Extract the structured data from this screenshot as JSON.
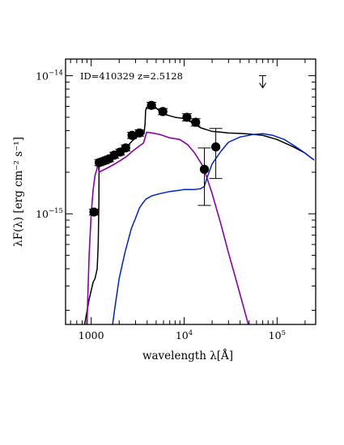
{
  "chart_data": {
    "type": "scatter",
    "annotation": "ID=410329  z=2.5128",
    "xlabel": "wavelength λ[Å]",
    "ylabel": "λF(λ) [erg cm⁻² s⁻¹]",
    "xscale": "log",
    "yscale": "log",
    "xlim": [
      530,
      260000
    ],
    "ylim": [
      1.58e-16,
      1.32e-14
    ],
    "xticks": [
      {
        "value": 1000,
        "label": "1000"
      },
      {
        "value": 10000,
        "label": "10",
        "exp": "4"
      },
      {
        "value": 100000,
        "label": "10",
        "exp": "5"
      }
    ],
    "yticks": [
      {
        "value": 1e-15,
        "label": "10",
        "exp": "−15"
      },
      {
        "value": 1e-14,
        "label": "10",
        "exp": "−14"
      }
    ],
    "colors": {
      "points": "#000000",
      "total_model": "#000000",
      "starburst_component": "#8800aa",
      "dust_component": "#0022cc"
    },
    "points": [
      {
        "x": 1070,
        "y": 1.03e-15,
        "yerr": 5e-17
      },
      {
        "x": 1220,
        "y": 2.35e-15,
        "yerr": 1.2e-16
      },
      {
        "x": 1380,
        "y": 2.42e-15,
        "yerr": 1.2e-16
      },
      {
        "x": 1560,
        "y": 2.5e-15,
        "yerr": 1.2e-16
      },
      {
        "x": 1770,
        "y": 2.66e-15,
        "yerr": 1.3e-16
      },
      {
        "x": 2050,
        "y": 2.8e-15,
        "yerr": 1.4e-16
      },
      {
        "x": 2350,
        "y": 3e-15,
        "yerr": 1.5e-16
      },
      {
        "x": 2750,
        "y": 3.7e-15,
        "yerr": 1.9e-16
      },
      {
        "x": 3300,
        "y": 3.85e-15,
        "yerr": 2e-16
      },
      {
        "x": 4450,
        "y": 6.1e-15,
        "yerr": 3.2e-16
      },
      {
        "x": 5900,
        "y": 5.5e-15,
        "yerr": 2.8e-16
      },
      {
        "x": 10700,
        "y": 5e-15,
        "yerr": 3e-16
      },
      {
        "x": 13300,
        "y": 4.6e-15,
        "yerr": 2.8e-16
      },
      {
        "x": 16500,
        "y": 2.1e-15,
        "yerr_low": 9.5e-16,
        "yerr_high": 9e-16
      },
      {
        "x": 21900,
        "y": 3.05e-15,
        "yerr_low": 1.25e-15,
        "yerr_high": 1.1e-15
      }
    ],
    "upper_limits": [
      {
        "x": 70000,
        "y": 1e-14
      }
    ],
    "series": [
      {
        "key": "total_model",
        "x": [
          850,
          950,
          1050,
          1100,
          1160,
          1190,
          1210,
          1215,
          1230,
          1300,
          1400,
          1600,
          1800,
          2000,
          2400,
          2800,
          3200,
          3500,
          3700,
          3800,
          3850,
          3950,
          4300,
          4800,
          5500,
          6500,
          8000,
          10000,
          12000,
          15000,
          20000,
          25000,
          30000,
          40000,
          50000,
          70000,
          100000,
          150000,
          200000,
          250000
        ],
        "y": [
          1.58e-16,
          2.4e-16,
          3.2e-16,
          3.4e-16,
          4e-16,
          6e-16,
          1.2e-15,
          2.1e-15,
          2.4e-15,
          2.45e-15,
          2.48e-15,
          2.58e-15,
          2.68e-15,
          2.8e-15,
          3.05e-15,
          3.4e-15,
          3.65e-15,
          3.75e-15,
          3.8e-15,
          4.5e-15,
          5.6e-15,
          5.9e-15,
          5.95e-15,
          6e-15,
          5.5e-15,
          5.2e-15,
          5e-15,
          4.9e-15,
          4.6e-15,
          4.2e-15,
          3.95e-15,
          3.9e-15,
          3.85e-15,
          3.82e-15,
          3.78e-15,
          3.7e-15,
          3.45e-15,
          3.05e-15,
          2.75e-15,
          2.45e-15
        ]
      },
      {
        "key": "starburst_component",
        "x": [
          900,
          950,
          1000,
          1050,
          1100,
          1150,
          1180,
          1215,
          1300,
          1500,
          1800,
          2000,
          2400,
          2800,
          3300,
          3650,
          3800,
          3950,
          4500,
          5500,
          7000,
          9000,
          11000,
          13000,
          16000,
          20000,
          25000,
          30000,
          35000,
          40000,
          45000,
          49000
        ],
        "y": [
          1.58e-16,
          5e-16,
          1e-15,
          1.5e-15,
          1.9e-15,
          2.1e-15,
          2.3e-15,
          2e-15,
          2.05e-15,
          2.15e-15,
          2.3e-15,
          2.4e-15,
          2.6e-15,
          2.85e-15,
          3.1e-15,
          3.25e-15,
          3.55e-15,
          3.9e-15,
          3.85e-15,
          3.75e-15,
          3.55e-15,
          3.45e-15,
          3.15e-15,
          2.75e-15,
          2.2e-15,
          1.4e-15,
          8.3e-16,
          5.2e-16,
          3.6e-16,
          2.6e-16,
          1.95e-16,
          1.58e-16
        ]
      },
      {
        "key": "dust_component",
        "x": [
          1700,
          1800,
          2000,
          2300,
          2700,
          3000,
          3300,
          3600,
          3900,
          4500,
          5500,
          7000,
          9000,
          10000,
          11000,
          13000,
          15000,
          16500,
          17500,
          20000,
          25000,
          30000,
          40000,
          55000,
          70000,
          90000,
          120000,
          160000,
          200000,
          250000
        ],
        "y": [
          1.58e-16,
          2.1e-16,
          3.4e-16,
          5.2e-16,
          7.8e-16,
          9.3e-16,
          1.1e-15,
          1.2e-15,
          1.28e-15,
          1.35e-15,
          1.4e-15,
          1.45e-15,
          1.48e-15,
          1.5e-15,
          1.5e-15,
          1.5e-15,
          1.52e-15,
          1.58e-15,
          1.8e-15,
          2.3e-15,
          2.85e-15,
          3.3e-15,
          3.6e-15,
          3.75e-15,
          3.8e-15,
          3.7e-15,
          3.45e-15,
          3.05e-15,
          2.75e-15,
          2.45e-15
        ]
      }
    ]
  }
}
